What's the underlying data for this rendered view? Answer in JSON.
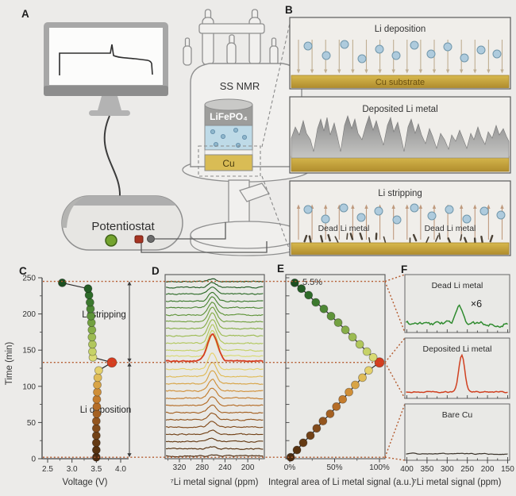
{
  "panels": {
    "a": "A",
    "b": "B",
    "c": "C",
    "d": "D",
    "e": "E",
    "f": "F"
  },
  "panel_a": {
    "nmr_title": "SS NMR",
    "cathode_label": "LiFePO₄",
    "substrate_label": "Cu",
    "device_label": "Potentiostat"
  },
  "panel_b": {
    "deposition_title": "Li deposition",
    "cu_substrate_label": "Cu substrate",
    "deposited_title": "Deposited Li metal",
    "stripping_title": "Li stripping",
    "dead_li_left": "Dead Li metal",
    "dead_li_right": "Dead Li metal"
  },
  "shared_series": {
    "times_min": [
      2,
      12,
      22,
      32,
      42,
      52,
      62,
      72,
      82,
      92,
      102,
      112,
      122,
      133,
      140,
      148,
      158,
      168,
      178,
      188,
      197,
      207,
      216,
      226,
      235,
      243
    ],
    "colors": [
      "#4b2b10",
      "#57320f",
      "#643a13",
      "#724217",
      "#824b1b",
      "#93551e",
      "#a56122",
      "#b56d27",
      "#c47c2d",
      "#d08f38",
      "#d8a446",
      "#e0bc58",
      "#e5d16c",
      "#d63c1f",
      "#d8da74",
      "#c6d267",
      "#b1c75c",
      "#9cbb52",
      "#87ae49",
      "#73a141",
      "#5f943a",
      "#4d8734",
      "#3c792e",
      "#2e6b29",
      "#245d25",
      "#1d4f20"
    ],
    "highlight_time": 133,
    "guide_times": [
      245,
      133,
      2
    ]
  },
  "chart_data": [
    {
      "panel": "C",
      "type": "scatter",
      "xlabel": "Voltage (V)",
      "ylabel": "Time (min)",
      "xticks": [
        "2.5",
        "3.0",
        "3.5",
        "4.0"
      ],
      "yticks": [
        "0",
        "50",
        "100",
        "150",
        "200",
        "250"
      ],
      "xlim": [
        2.5,
        4.3
      ],
      "ylim": [
        0,
        250
      ],
      "annotations": [
        {
          "text": "Li stripping"
        },
        {
          "text": "Li deposition"
        }
      ],
      "voltages": [
        3.5,
        3.5,
        3.5,
        3.5,
        3.5,
        3.5,
        3.51,
        3.51,
        3.51,
        3.52,
        3.52,
        3.53,
        3.55,
        3.82,
        3.43,
        3.42,
        3.42,
        3.41,
        3.41,
        3.4,
        3.39,
        3.38,
        3.37,
        3.35,
        3.33,
        2.8
      ]
    },
    {
      "panel": "D",
      "type": "line",
      "xlabel": "⁷Li metal signal (ppm)",
      "xticks": [
        "320",
        "280",
        "240",
        "200"
      ],
      "x_range_ppm": [
        345,
        171
      ],
      "peak_ppm": 262,
      "amplitudes": [
        1,
        2.5,
        4,
        5.5,
        7,
        8.5,
        10,
        11.5,
        13,
        14.5,
        16.5,
        18.5,
        20.5,
        34,
        26,
        24.5,
        23,
        21.5,
        20,
        18,
        16,
        13.5,
        11,
        8.5,
        6,
        3.5
      ]
    },
    {
      "panel": "E",
      "type": "scatter",
      "xlabel": "Integral area of Li metal signal (a.u.)",
      "xticks": [
        "0%",
        "50%",
        "100%"
      ],
      "annotation": {
        "text": "5.5%"
      },
      "percents": [
        1,
        8,
        15,
        23,
        30,
        37,
        45,
        52,
        59,
        66,
        73,
        81,
        88,
        100,
        93,
        86,
        78,
        70,
        62,
        54,
        46,
        38,
        29,
        21,
        13,
        5.5
      ]
    },
    {
      "panel": "F",
      "type": "line",
      "xlabel": "⁷Li metal signal (ppm)",
      "xticks": [
        "400",
        "350",
        "300",
        "250",
        "200",
        "150"
      ],
      "subpanels": [
        {
          "title": "Dead Li metal",
          "scale_label": "×6",
          "color": "#2f8b2f",
          "peak_ppm": 270,
          "peak_height": 20,
          "noise": 2.2
        },
        {
          "title": "Deposited Li metal",
          "color": "#d04020",
          "peak_ppm": 264,
          "peak_height": 47,
          "noise": 0.8
        },
        {
          "title": "Bare Cu",
          "color": "#3a332a",
          "noise": 0.5
        }
      ]
    }
  ]
}
